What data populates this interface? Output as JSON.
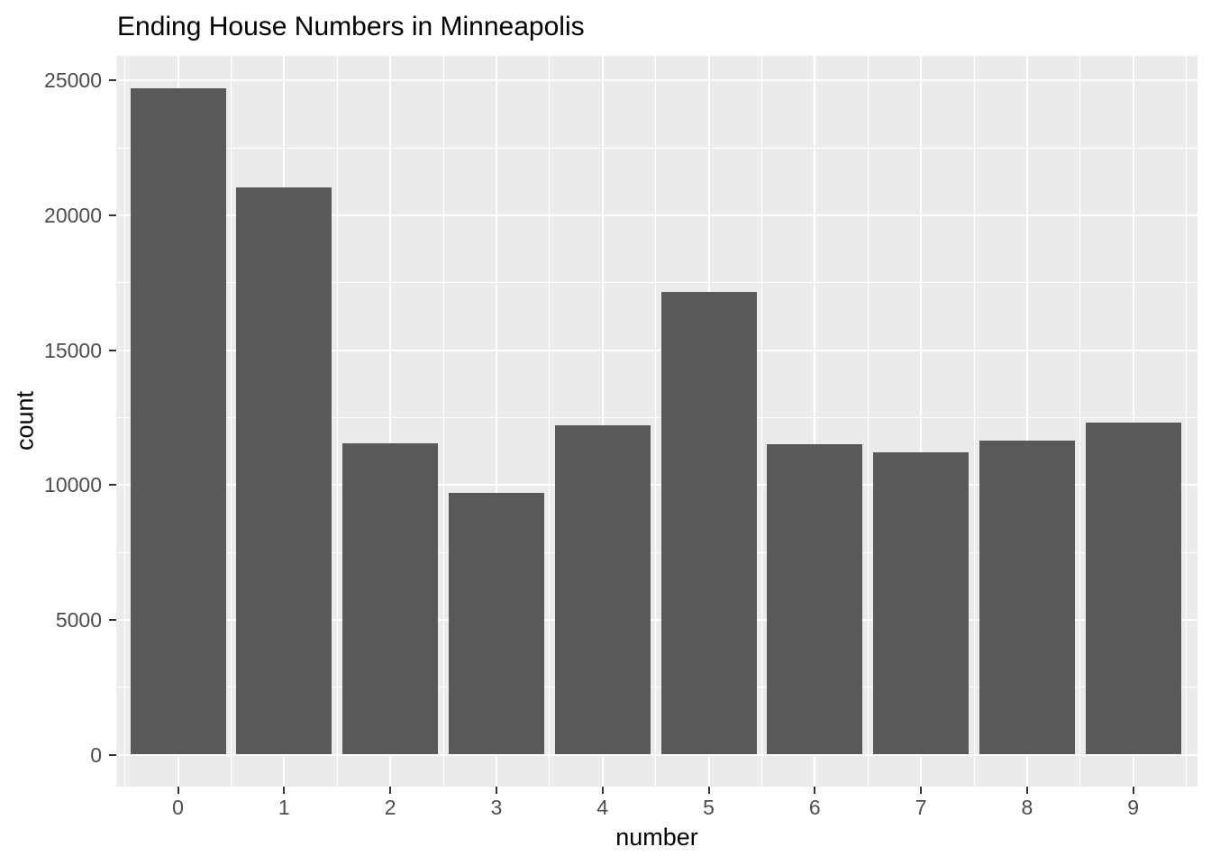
{
  "title": "Ending House Numbers in Minneapolis",
  "chart_data": {
    "type": "bar",
    "title": "Ending House Numbers in Minneapolis",
    "xlabel": "number",
    "ylabel": "count",
    "categories": [
      "0",
      "1",
      "2",
      "3",
      "4",
      "5",
      "6",
      "7",
      "8",
      "9"
    ],
    "values": [
      24700,
      21050,
      11550,
      9700,
      12200,
      17150,
      11500,
      11200,
      11650,
      12300
    ],
    "yticks": [
      0,
      5000,
      10000,
      15000,
      20000,
      25000
    ],
    "ytick_labels": [
      "0",
      "5000",
      "10000",
      "15000",
      "20000",
      "25000"
    ],
    "minor_yticks": [
      2500,
      7500,
      12500,
      17500,
      22500
    ],
    "ylim": [
      -1220,
      25880
    ],
    "grid": "major-and-minor-white-on-grey",
    "legend": "none",
    "colors": {
      "bar": "#595959",
      "panel_bg": "#EBEBEB",
      "grid": "#FFFFFF",
      "tick_text": "#4D4D4D",
      "tick_mark": "#333333",
      "title_text": "#000000",
      "background": "#FFFFFF"
    }
  }
}
